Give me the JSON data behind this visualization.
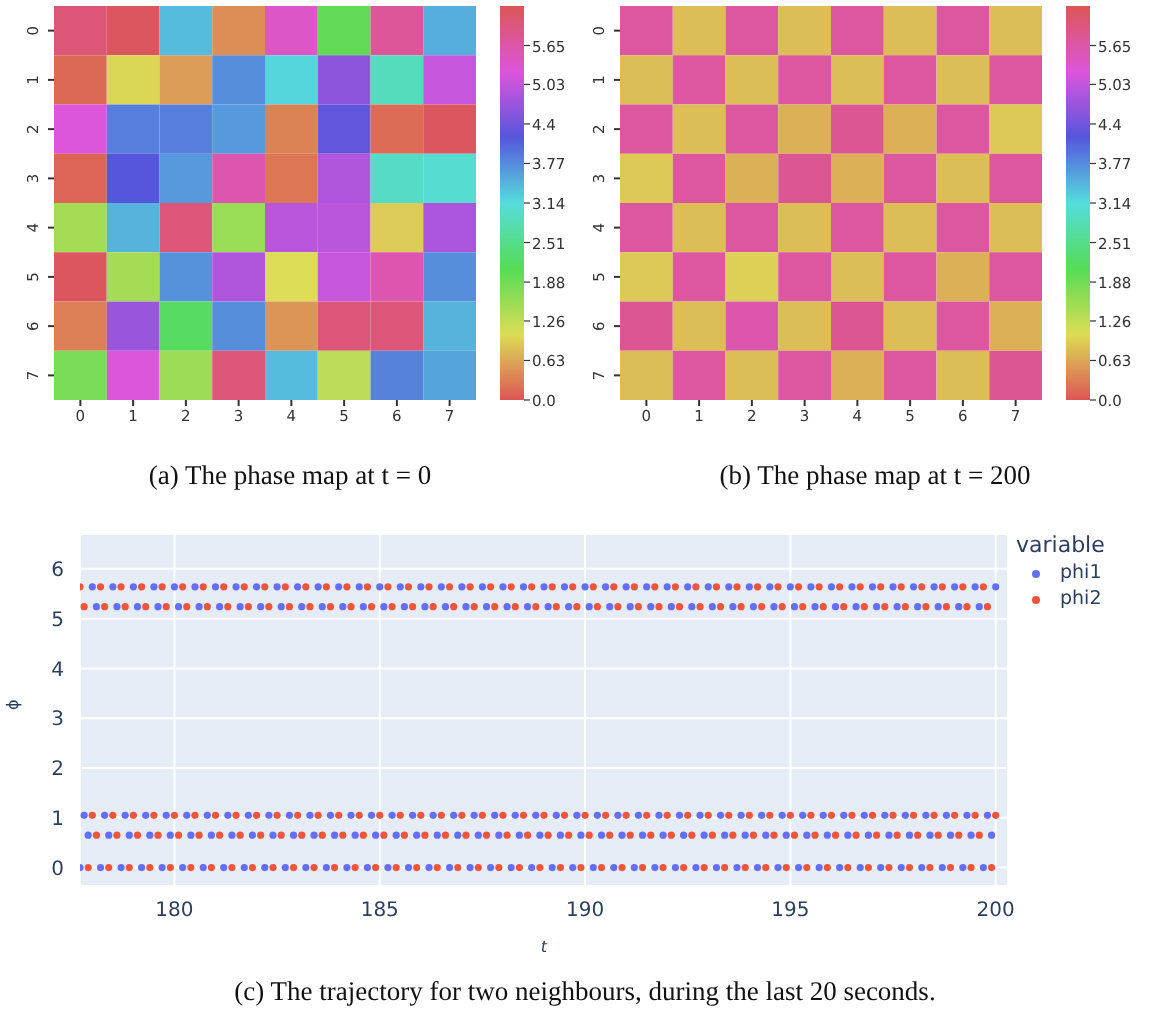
{
  "chart_data": [
    {
      "type": "heatmap",
      "categories": [
        "0",
        "1",
        "2",
        "3",
        "4",
        "5",
        "6",
        "7"
      ],
      "y_categories": [
        "0",
        "1",
        "2",
        "3",
        "4",
        "5",
        "6",
        "7"
      ],
      "cells": [
        [
          6.02,
          6.2,
          3.4,
          0.44,
          5.4,
          2.0,
          5.76,
          3.5
        ],
        [
          0.14,
          1.0,
          0.56,
          3.75,
          3.2,
          4.6,
          2.9,
          5.06
        ],
        [
          5.24,
          3.87,
          3.87,
          3.66,
          0.35,
          4.28,
          0.17,
          6.2
        ],
        [
          0.12,
          4.19,
          3.66,
          5.58,
          0.26,
          4.89,
          2.97,
          3.05
        ],
        [
          1.48,
          3.46,
          6.02,
          1.57,
          4.97,
          4.97,
          0.91,
          4.85
        ],
        [
          6.2,
          1.48,
          3.72,
          4.89,
          1.05,
          5.06,
          5.58,
          3.75
        ],
        [
          0.31,
          4.71,
          2.18,
          3.75,
          0.49,
          6.02,
          6.02,
          3.46
        ],
        [
          1.83,
          5.24,
          1.54,
          6.02,
          3.4,
          1.31,
          3.84,
          3.58
        ]
      ],
      "clim": [
        0,
        6.28
      ],
      "cticks": [
        {
          "value": 0,
          "label": "0.0"
        },
        0.63,
        1.26,
        1.88,
        2.51,
        3.14,
        3.77,
        4.4,
        5.03,
        5.65
      ],
      "annotations": [
        "(a) The phase map at t = 0"
      ]
    },
    {
      "type": "heatmap",
      "categories": [
        "0",
        "1",
        "2",
        "3",
        "4",
        "5",
        "6",
        "7"
      ],
      "y_categories": [
        "0",
        "1",
        "2",
        "3",
        "4",
        "5",
        "6",
        "7"
      ],
      "cells": [
        [
          5.7,
          0.8,
          5.7,
          0.8,
          5.7,
          0.8,
          5.7,
          0.8
        ],
        [
          0.8,
          5.7,
          0.8,
          5.7,
          0.8,
          5.7,
          0.8,
          5.7
        ],
        [
          5.7,
          0.8,
          5.7,
          0.7,
          5.8,
          0.7,
          5.7,
          0.9
        ],
        [
          0.9,
          5.7,
          0.7,
          5.8,
          0.7,
          5.7,
          0.8,
          5.7
        ],
        [
          5.7,
          0.8,
          5.7,
          0.8,
          5.7,
          0.8,
          5.7,
          0.8
        ],
        [
          0.9,
          5.7,
          0.95,
          5.7,
          0.8,
          5.7,
          0.7,
          5.7
        ],
        [
          5.8,
          0.8,
          5.6,
          0.8,
          5.8,
          0.8,
          5.7,
          0.7
        ],
        [
          0.8,
          5.7,
          0.8,
          5.7,
          0.7,
          5.7,
          0.8,
          5.8
        ]
      ],
      "clim": [
        0,
        6.28
      ],
      "cticks": [
        {
          "value": 0,
          "label": "0.0"
        },
        0.63,
        1.26,
        1.88,
        2.51,
        3.14,
        3.77,
        4.4,
        5.03,
        5.65
      ],
      "annotations": [
        "(b) The phase map at t = 200"
      ]
    },
    {
      "type": "scatter",
      "xlabel": "t",
      "ylabel": "ϕ",
      "legend_title": "variable",
      "legend": "top right",
      "grid": true,
      "marker": "circle",
      "xlim": [
        177.7,
        200.3
      ],
      "ylim": [
        -0.37,
        6.7
      ],
      "xticks": [
        180,
        185,
        190,
        195,
        200
      ],
      "yticks": [
        0,
        1,
        2,
        3,
        4,
        5,
        6
      ],
      "x": [
        177.7,
        177.8,
        177.9,
        178,
        178.1,
        178.2,
        178.3,
        178.4,
        178.5,
        178.6,
        178.7,
        178.8,
        178.9,
        179,
        179.1,
        179.2,
        179.3,
        179.4,
        179.5,
        179.6,
        179.7,
        179.8,
        179.9,
        180,
        180.1,
        180.2,
        180.3,
        180.4,
        180.5,
        180.6,
        180.7,
        180.8,
        180.9,
        181,
        181.1,
        181.2,
        181.3,
        181.4,
        181.5,
        181.6,
        181.7,
        181.8,
        181.9,
        182,
        182.1,
        182.2,
        182.3,
        182.4,
        182.5,
        182.6,
        182.7,
        182.8,
        182.9,
        183,
        183.1,
        183.2,
        183.3,
        183.4,
        183.5,
        183.6,
        183.7,
        183.8,
        183.9,
        184,
        184.1,
        184.2,
        184.3,
        184.4,
        184.5,
        184.6,
        184.7,
        184.8,
        184.9,
        185,
        185.1,
        185.2,
        185.3,
        185.4,
        185.5,
        185.6,
        185.7,
        185.8,
        185.9,
        186,
        186.1,
        186.2,
        186.3,
        186.4,
        186.5,
        186.6,
        186.7,
        186.8,
        186.9,
        187,
        187.1,
        187.2,
        187.3,
        187.4,
        187.5,
        187.6,
        187.7,
        187.8,
        187.9,
        188,
        188.1,
        188.2,
        188.3,
        188.4,
        188.5,
        188.6,
        188.7,
        188.8,
        188.9,
        189,
        189.1,
        189.2,
        189.3,
        189.4,
        189.5,
        189.6,
        189.7,
        189.8,
        189.9,
        190,
        190.1,
        190.2,
        190.3,
        190.4,
        190.5,
        190.6,
        190.7,
        190.8,
        190.9,
        191,
        191.1,
        191.2,
        191.3,
        191.4,
        191.5,
        191.6,
        191.7,
        191.8,
        191.9,
        192,
        192.1,
        192.2,
        192.3,
        192.4,
        192.5,
        192.6,
        192.7,
        192.8,
        192.9,
        193,
        193.1,
        193.2,
        193.3,
        193.4,
        193.5,
        193.6,
        193.7,
        193.8,
        193.9,
        194,
        194.1,
        194.2,
        194.3,
        194.4,
        194.5,
        194.6,
        194.7,
        194.8,
        194.9,
        195,
        195.1,
        195.2,
        195.3,
        195.4,
        195.5,
        195.6,
        195.7,
        195.8,
        195.9,
        196,
        196.1,
        196.2,
        196.3,
        196.4,
        196.5,
        196.6,
        196.7,
        196.8,
        196.9,
        197,
        197.1,
        197.2,
        197.3,
        197.4,
        197.5,
        197.6,
        197.7,
        197.8,
        197.9,
        198,
        198.1,
        198.2,
        198.3,
        198.4,
        198.5,
        198.6,
        198.7,
        198.8,
        198.9,
        199,
        199.1,
        199.2,
        199.3,
        199.4,
        199.5,
        199.6,
        199.7,
        199.8,
        199.9,
        200
      ],
      "series": [
        {
          "name": "phi1",
          "color": "#636efa",
          "values": [
            0,
            1.05,
            0.65,
            5.64,
            5.24,
            0,
            1.05,
            0.65,
            5.64,
            5.24,
            0,
            1.05,
            0.65,
            5.64,
            5.24,
            0,
            1.05,
            0.65,
            5.64,
            5.24,
            0,
            1.05,
            0.65,
            5.64,
            5.24,
            0,
            1.05,
            0.65,
            5.64,
            5.24,
            0,
            1.05,
            0.65,
            5.64,
            5.24,
            0,
            1.05,
            0.65,
            5.64,
            5.24,
            0,
            1.05,
            0.65,
            5.64,
            5.24,
            0,
            1.05,
            0.65,
            5.64,
            5.24,
            0,
            1.05,
            0.65,
            5.64,
            5.24,
            0,
            1.05,
            0.65,
            5.64,
            5.24,
            0,
            1.05,
            0.65,
            5.64,
            5.24,
            0,
            1.05,
            0.65,
            5.64,
            5.24,
            0,
            1.05,
            0.65,
            5.64,
            5.24,
            0,
            1.05,
            0.65,
            5.64,
            5.24,
            0,
            1.05,
            0.65,
            5.64,
            5.24,
            0,
            1.05,
            0.65,
            5.64,
            5.24,
            0,
            1.05,
            0.65,
            5.64,
            5.24,
            0,
            1.05,
            0.65,
            5.64,
            5.24,
            0,
            1.05,
            0.65,
            5.64,
            5.24,
            0,
            1.05,
            0.65,
            5.64,
            5.24,
            0,
            1.05,
            0.65,
            5.64,
            5.24,
            0,
            1.05,
            0.65,
            5.64,
            5.24,
            0,
            1.05,
            0.65,
            5.64,
            5.24,
            0,
            1.05,
            0.65,
            5.64,
            5.24,
            0,
            1.05,
            0.65,
            5.64,
            5.24,
            0,
            1.05,
            0.65,
            5.64,
            5.24,
            0,
            1.05,
            0.65,
            5.64,
            5.24,
            0,
            1.05,
            0.65,
            5.64,
            5.24,
            0,
            1.05,
            0.65,
            5.64,
            5.24,
            0,
            1.05,
            0.65,
            5.64,
            5.24,
            0,
            1.05,
            0.65,
            5.64,
            5.24,
            0,
            1.05,
            0.65,
            5.64,
            5.24,
            0,
            1.05,
            0.65,
            5.64,
            5.24,
            0,
            1.05,
            0.65,
            5.64,
            5.24,
            0,
            1.05,
            0.65,
            5.64,
            5.24,
            0,
            1.05,
            0.65,
            5.64,
            5.24,
            0,
            1.05,
            0.65,
            5.64,
            5.24,
            0,
            1.05,
            0.65,
            5.64,
            5.24,
            0,
            1.05,
            0.65,
            5.64,
            5.24,
            0,
            1.05,
            0.65,
            5.64,
            5.24,
            0,
            1.05,
            0.65,
            5.64,
            5.24,
            0,
            1.05,
            0.65,
            5.64,
            5.24,
            0,
            1.05,
            0.65,
            5.64
          ]
        },
        {
          "name": "phi2",
          "color": "#ef553b",
          "values": [
            5.64,
            5.24,
            0,
            1.05,
            0.65,
            5.64,
            5.24,
            0,
            1.05,
            0.65,
            5.64,
            5.24,
            0,
            1.05,
            0.65,
            5.64,
            5.24,
            0,
            1.05,
            0.65,
            5.64,
            5.24,
            0,
            1.05,
            0.65,
            5.64,
            5.24,
            0,
            1.05,
            0.65,
            5.64,
            5.24,
            0,
            1.05,
            0.65,
            5.64,
            5.24,
            0,
            1.05,
            0.65,
            5.64,
            5.24,
            0,
            1.05,
            0.65,
            5.64,
            5.24,
            0,
            1.05,
            0.65,
            5.64,
            5.24,
            0,
            1.05,
            0.65,
            5.64,
            5.24,
            0,
            1.05,
            0.65,
            5.64,
            5.24,
            0,
            1.05,
            0.65,
            5.64,
            5.24,
            0,
            1.05,
            0.65,
            5.64,
            5.24,
            0,
            1.05,
            0.65,
            5.64,
            5.24,
            0,
            1.05,
            0.65,
            5.64,
            5.24,
            0,
            1.05,
            0.65,
            5.64,
            5.24,
            0,
            1.05,
            0.65,
            5.64,
            5.24,
            0,
            1.05,
            0.65,
            5.64,
            5.24,
            0,
            1.05,
            0.65,
            5.64,
            5.24,
            0,
            1.05,
            0.65,
            5.64,
            5.24,
            0,
            1.05,
            0.65,
            5.64,
            5.24,
            0,
            1.05,
            0.65,
            5.64,
            5.24,
            0,
            1.05,
            0.65,
            5.64,
            5.24,
            0,
            1.05,
            0.65,
            5.64,
            5.24,
            0,
            1.05,
            0.65,
            5.64,
            5.24,
            0,
            1.05,
            0.65,
            5.64,
            5.24,
            0,
            1.05,
            0.65,
            5.64,
            5.24,
            0,
            1.05,
            0.65,
            5.64,
            5.24,
            0,
            1.05,
            0.65,
            5.64,
            5.24,
            0,
            1.05,
            0.65,
            5.64,
            5.24,
            0,
            1.05,
            0.65,
            5.64,
            5.24,
            0,
            1.05,
            0.65,
            5.64,
            5.24,
            0,
            1.05,
            0.65,
            5.64,
            5.24,
            0,
            1.05,
            0.65,
            5.64,
            5.24,
            0,
            1.05,
            0.65,
            5.64,
            5.24,
            0,
            1.05,
            0.65,
            5.64,
            5.24,
            0,
            1.05,
            0.65,
            5.64,
            5.24,
            0,
            1.05,
            0.65,
            5.64,
            5.24,
            0,
            1.05,
            0.65,
            5.64,
            5.24,
            0,
            1.05,
            0.65,
            5.64,
            5.24,
            0,
            1.05,
            0.65,
            5.64,
            5.24,
            0,
            1.05,
            0.65,
            5.64,
            5.24,
            0,
            1.05,
            0.65,
            5.64,
            5.24,
            0,
            1.05
          ]
        }
      ],
      "annotations": [
        "(c) The trajectory for two neighbours, during the last 20 seconds."
      ]
    }
  ]
}
